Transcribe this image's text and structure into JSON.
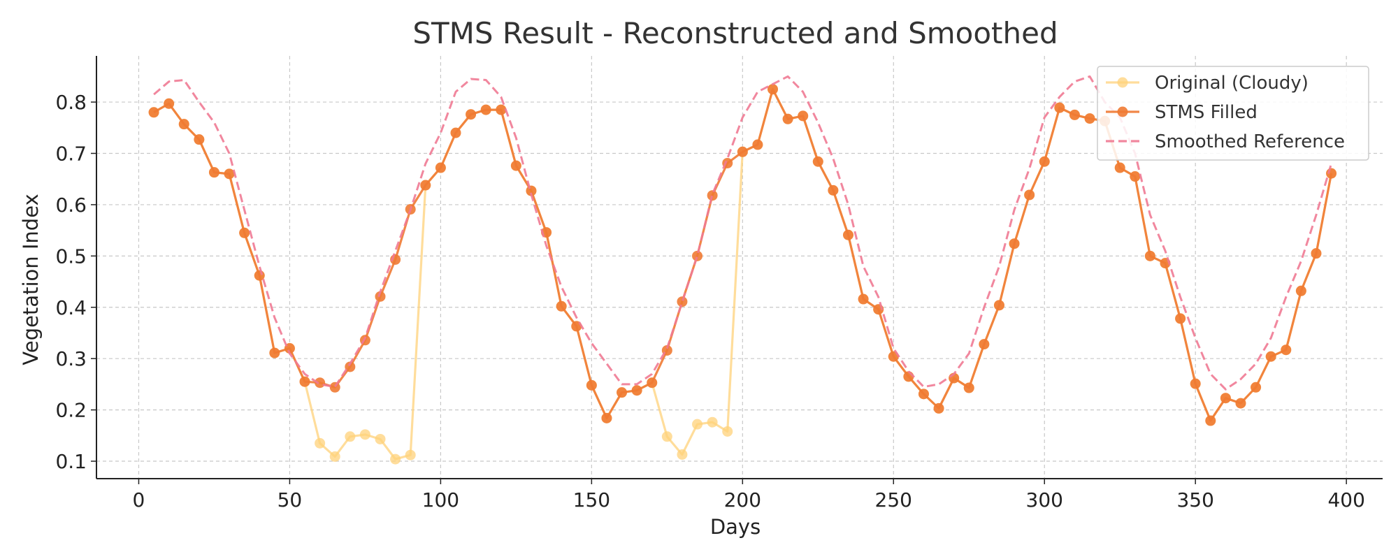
{
  "chart_data": {
    "type": "line",
    "title": "STMS Result - Reconstructed and Smoothed",
    "xlabel": "Days",
    "ylabel": "Vegetation Index",
    "xlim": [
      -14,
      412
    ],
    "ylim": [
      0.066,
      0.89
    ],
    "xticks": [
      0,
      50,
      100,
      150,
      200,
      250,
      300,
      350,
      400
    ],
    "yticks": [
      0.1,
      0.2,
      0.3,
      0.4,
      0.5,
      0.6,
      0.7,
      0.8
    ],
    "grid": true,
    "legend_position": "top-right",
    "colors": {
      "original": "#FFD27A",
      "filled": "#F07A33",
      "smoothed": "#F07A93"
    },
    "x": [
      5,
      10,
      15,
      20,
      25,
      30,
      35,
      40,
      45,
      50,
      55,
      60,
      65,
      70,
      75,
      80,
      85,
      90,
      95,
      100,
      105,
      110,
      115,
      120,
      125,
      130,
      135,
      140,
      145,
      150,
      155,
      160,
      165,
      170,
      175,
      180,
      185,
      190,
      195,
      200,
      205,
      210,
      215,
      220,
      225,
      230,
      235,
      240,
      245,
      250,
      255,
      260,
      265,
      270,
      275,
      280,
      285,
      290,
      295,
      300,
      305,
      310,
      315,
      320,
      325,
      330,
      335,
      340,
      345,
      350,
      355,
      360,
      365,
      370,
      375,
      380,
      385,
      390,
      395
    ],
    "series": [
      {
        "name": "Original (Cloudy)",
        "style": "line-marker",
        "values": [
          0.78,
          0.797,
          0.757,
          0.727,
          0.663,
          0.66,
          0.545,
          0.462,
          0.311,
          0.32,
          0.255,
          0.135,
          0.109,
          0.148,
          0.152,
          0.143,
          0.104,
          0.112,
          0.638,
          0.672,
          0.74,
          0.776,
          0.785,
          0.785,
          0.676,
          0.627,
          0.546,
          0.402,
          0.363,
          0.248,
          0.184,
          0.234,
          0.238,
          0.253,
          0.148,
          0.113,
          0.172,
          0.176,
          0.158,
          0.703,
          0.717,
          0.825,
          0.767,
          0.773,
          0.684,
          0.628,
          0.541,
          0.416,
          0.396,
          0.304,
          0.265,
          0.231,
          0.203,
          0.262,
          0.243,
          0.328,
          0.404,
          0.524,
          0.619,
          0.684,
          0.789,
          0.775,
          0.768,
          0.763,
          0.672,
          0.655,
          0.5,
          0.486,
          0.378,
          0.251,
          0.179,
          0.223,
          0.213,
          0.244,
          0.304,
          0.317,
          0.432,
          0.505,
          0.661
        ]
      },
      {
        "name": "STMS Filled",
        "style": "line-marker",
        "values": [
          0.78,
          0.797,
          0.757,
          0.727,
          0.663,
          0.66,
          0.545,
          0.462,
          0.311,
          0.32,
          0.255,
          0.253,
          0.244,
          0.284,
          0.336,
          0.421,
          0.493,
          0.591,
          0.638,
          0.672,
          0.74,
          0.776,
          0.785,
          0.785,
          0.676,
          0.627,
          0.546,
          0.402,
          0.363,
          0.248,
          0.184,
          0.234,
          0.238,
          0.253,
          0.316,
          0.411,
          0.5,
          0.618,
          0.681,
          0.703,
          0.717,
          0.825,
          0.767,
          0.773,
          0.684,
          0.628,
          0.541,
          0.416,
          0.396,
          0.304,
          0.265,
          0.231,
          0.203,
          0.262,
          0.243,
          0.328,
          0.404,
          0.524,
          0.619,
          0.684,
          0.789,
          0.775,
          0.768,
          0.763,
          0.672,
          0.655,
          0.5,
          0.486,
          0.378,
          0.251,
          0.179,
          0.223,
          0.213,
          0.244,
          0.304,
          0.317,
          0.432,
          0.505,
          0.661
        ]
      },
      {
        "name": "Smoothed Reference",
        "style": "dashed",
        "values": [
          0.815,
          0.84,
          0.843,
          0.8,
          0.76,
          0.7,
          0.59,
          0.48,
          0.38,
          0.31,
          0.27,
          0.25,
          0.245,
          0.29,
          0.34,
          0.43,
          0.51,
          0.59,
          0.68,
          0.74,
          0.82,
          0.845,
          0.843,
          0.81,
          0.73,
          0.62,
          0.52,
          0.44,
          0.38,
          0.33,
          0.29,
          0.25,
          0.25,
          0.27,
          0.32,
          0.41,
          0.5,
          0.62,
          0.69,
          0.77,
          0.82,
          0.835,
          0.85,
          0.82,
          0.76,
          0.69,
          0.6,
          0.48,
          0.42,
          0.32,
          0.275,
          0.245,
          0.25,
          0.27,
          0.31,
          0.4,
          0.48,
          0.59,
          0.67,
          0.77,
          0.81,
          0.84,
          0.85,
          0.8,
          0.77,
          0.7,
          0.58,
          0.51,
          0.42,
          0.34,
          0.27,
          0.24,
          0.26,
          0.29,
          0.34,
          0.42,
          0.49,
          0.58,
          0.68
        ]
      }
    ]
  }
}
